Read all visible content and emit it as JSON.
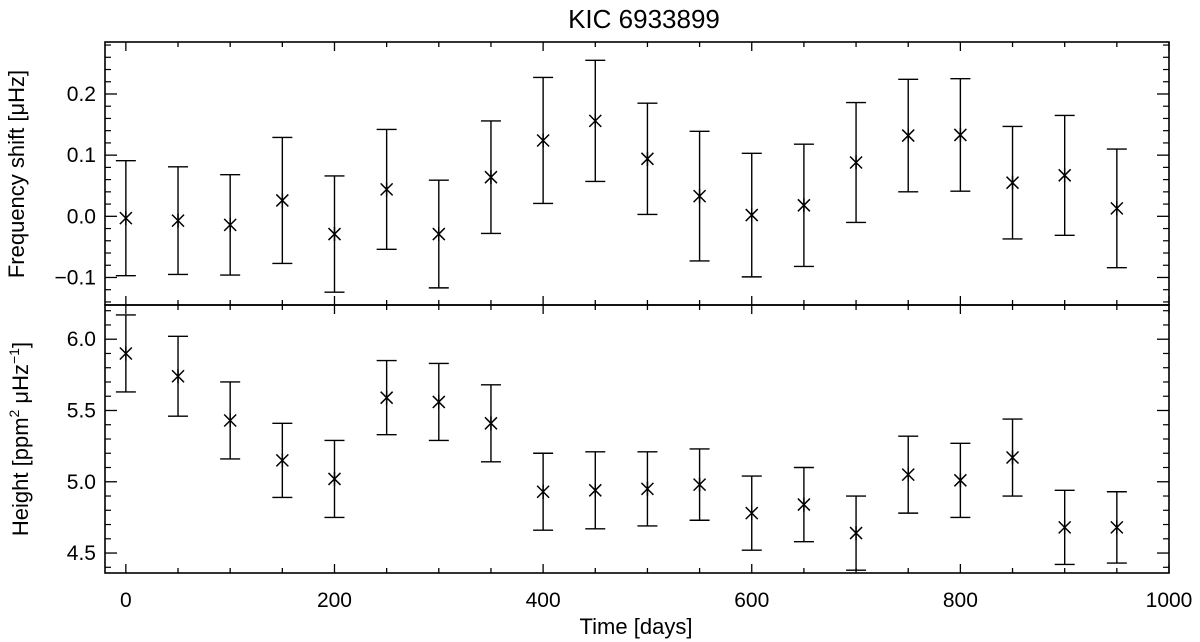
{
  "chart_data": {
    "type": "scatter",
    "title": "KIC 6933899",
    "xlabel": "Time [days]",
    "xlim": [
      -20,
      1000
    ],
    "x_ticks": [
      0,
      200,
      400,
      600,
      800,
      1000
    ],
    "x_tick_labels": [
      "0",
      "200",
      "400",
      "600",
      "800",
      "1000"
    ],
    "panels": [
      {
        "name": "frequency-shift",
        "ylabel": "Frequency shift [μHz]",
        "ylim": [
          -0.145,
          0.285
        ],
        "y_ticks": [
          -0.1,
          0.0,
          0.1,
          0.2
        ],
        "y_tick_labels": [
          "−0.1",
          "0.0",
          "0.1",
          "0.2"
        ],
        "x": [
          0,
          50,
          100,
          150,
          200,
          250,
          300,
          350,
          400,
          450,
          500,
          550,
          600,
          650,
          700,
          750,
          800,
          850,
          900,
          950
        ],
        "y": [
          -0.003,
          -0.007,
          -0.014,
          0.026,
          -0.029,
          0.044,
          -0.029,
          0.064,
          0.124,
          0.156,
          0.094,
          0.033,
          0.002,
          0.018,
          0.088,
          0.132,
          0.133,
          0.055,
          0.067,
          0.013
        ],
        "err": [
          0.094,
          0.088,
          0.082,
          0.103,
          0.095,
          0.098,
          0.088,
          0.092,
          0.103,
          0.099,
          0.091,
          0.106,
          0.101,
          0.1,
          0.098,
          0.092,
          0.092,
          0.092,
          0.098,
          0.097
        ]
      },
      {
        "name": "height",
        "ylabel_main": "Height [ppm",
        "ylabel_sup1": "2",
        "ylabel_mid": " μHz",
        "ylabel_sup2": "−1",
        "ylabel_end": "]",
        "ylim": [
          4.36,
          6.24
        ],
        "y_ticks": [
          4.5,
          5.0,
          5.5,
          6.0
        ],
        "y_tick_labels": [
          "4.5",
          "5.0",
          "5.5",
          "6.0"
        ],
        "x": [
          0,
          50,
          100,
          150,
          200,
          250,
          300,
          350,
          400,
          450,
          500,
          550,
          600,
          650,
          700,
          750,
          800,
          850,
          900,
          950
        ],
        "y": [
          5.9,
          5.74,
          5.43,
          5.15,
          5.02,
          5.59,
          5.56,
          5.41,
          4.93,
          4.94,
          4.95,
          4.98,
          4.78,
          4.84,
          4.64,
          5.05,
          5.01,
          5.17,
          4.68,
          4.68
        ],
        "err": [
          0.27,
          0.28,
          0.27,
          0.26,
          0.27,
          0.26,
          0.27,
          0.27,
          0.27,
          0.27,
          0.26,
          0.25,
          0.26,
          0.26,
          0.26,
          0.27,
          0.26,
          0.27,
          0.26,
          0.25
        ]
      }
    ]
  }
}
